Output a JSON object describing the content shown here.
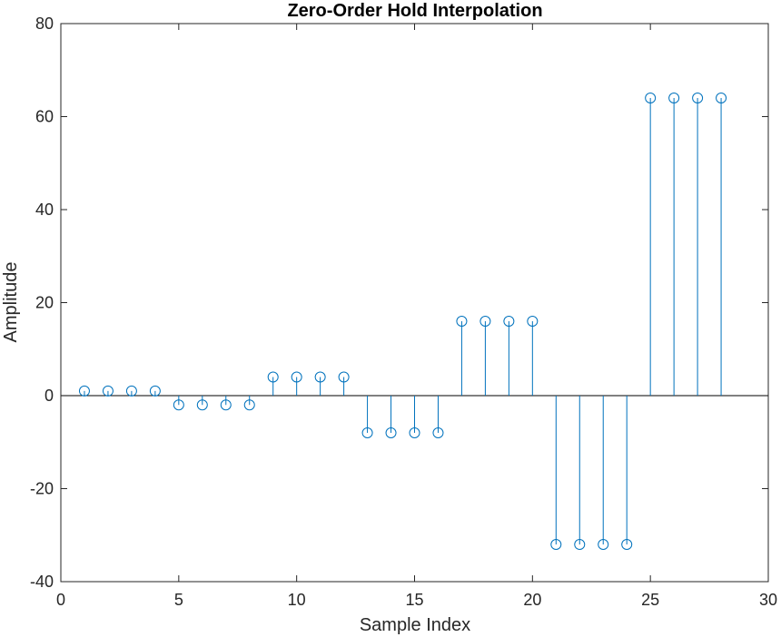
{
  "chart_data": {
    "type": "stem",
    "title": "Zero-Order Hold Interpolation",
    "xlabel": "Sample Index",
    "ylabel": "Amplitude",
    "xlim": [
      0,
      30
    ],
    "ylim": [
      -40,
      80
    ],
    "xticks": [
      0,
      5,
      10,
      15,
      20,
      25,
      30
    ],
    "yticks": [
      -40,
      -20,
      0,
      20,
      40,
      60,
      80
    ],
    "grid": false,
    "marker": "circle",
    "color": "#0072BD",
    "x": [
      1,
      2,
      3,
      4,
      5,
      6,
      7,
      8,
      9,
      10,
      11,
      12,
      13,
      14,
      15,
      16,
      17,
      18,
      19,
      20,
      21,
      22,
      23,
      24,
      25,
      26,
      27,
      28
    ],
    "y": [
      1,
      1,
      1,
      1,
      -2,
      -2,
      -2,
      -2,
      4,
      4,
      4,
      4,
      -8,
      -8,
      -8,
      -8,
      16,
      16,
      16,
      16,
      -32,
      -32,
      -32,
      -32,
      64,
      64,
      64,
      64
    ]
  }
}
